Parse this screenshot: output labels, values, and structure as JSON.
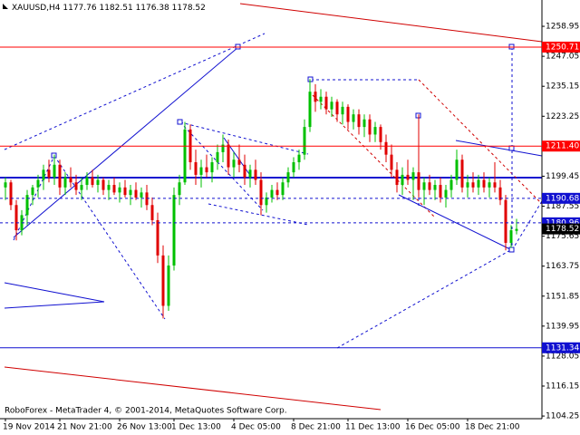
{
  "header": {
    "symbol": "XAUUSD,H4"
  },
  "footer": "RoboForex - MetaTrader 4, © 2001-2014, MetaQuotes Software Corp.",
  "chart_data": {
    "type": "candlestick",
    "up_color": "#00c000",
    "down_color": "#e00000",
    "ylim": [
      1103.2,
      1269.4
    ],
    "yticks": [
      1258.95,
      1247.05,
      1235.15,
      1223.25,
      1199.45,
      1187.55,
      1175.65,
      1163.75,
      1151.85,
      1139.95,
      1128.05,
      1116.15,
      1104.25
    ],
    "categories": [
      "19 Nov 2014",
      null,
      null,
      null,
      null,
      null,
      null,
      null,
      null,
      null,
      "21 Nov 21:00",
      null,
      null,
      null,
      null,
      null,
      null,
      null,
      null,
      null,
      null,
      "26 Nov 13:00",
      null,
      null,
      null,
      null,
      null,
      null,
      null,
      null,
      null,
      "1 Dec 13:00",
      null,
      null,
      null,
      null,
      null,
      null,
      null,
      null,
      null,
      null,
      "4 Dec 05:00",
      null,
      null,
      null,
      null,
      null,
      null,
      null,
      null,
      null,
      null,
      "8 Dec 21:00",
      null,
      null,
      null,
      null,
      null,
      null,
      null,
      null,
      null,
      "11 Dec 13:00",
      null,
      null,
      null,
      null,
      null,
      null,
      null,
      null,
      null,
      null,
      "16 Dec 05:00",
      null,
      null,
      null,
      null,
      null,
      null,
      null,
      null,
      null,
      null,
      "18 Dec 21:00",
      null,
      null,
      null,
      null,
      null,
      null,
      null,
      null,
      null
    ],
    "ohlc": [
      [
        1195,
        1199,
        1190,
        1197
      ],
      [
        1197,
        1198,
        1186,
        1188
      ],
      [
        1188,
        1190,
        1174,
        1178
      ],
      [
        1178,
        1186,
        1176,
        1184
      ],
      [
        1184,
        1194,
        1180,
        1192
      ],
      [
        1192,
        1196,
        1188,
        1195
      ],
      [
        1195,
        1200,
        1191,
        1198
      ],
      [
        1198,
        1204,
        1194,
        1202
      ],
      [
        1202,
        1206,
        1197,
        1199
      ],
      [
        1199,
        1208,
        1196,
        1204
      ],
      [
        1204,
        1206,
        1192,
        1195
      ],
      [
        1195,
        1201,
        1192,
        1199
      ],
      [
        1199,
        1203,
        1195,
        1197
      ],
      [
        1197,
        1200,
        1192,
        1194
      ],
      [
        1194,
        1199,
        1190,
        1196
      ],
      [
        1196,
        1201,
        1194,
        1199
      ],
      [
        1199,
        1202,
        1195,
        1196
      ],
      [
        1196,
        1200,
        1193,
        1198
      ],
      [
        1198,
        1199,
        1192,
        1194
      ],
      [
        1194,
        1198,
        1190,
        1196
      ],
      [
        1196,
        1199,
        1192,
        1193
      ],
      [
        1193,
        1197,
        1189,
        1195
      ],
      [
        1195,
        1198,
        1191,
        1192
      ],
      [
        1192,
        1196,
        1188,
        1194
      ],
      [
        1194,
        1197,
        1190,
        1191
      ],
      [
        1191,
        1195,
        1187,
        1193
      ],
      [
        1193,
        1196,
        1186,
        1188
      ],
      [
        1188,
        1191,
        1180,
        1182
      ],
      [
        1182,
        1185,
        1165,
        1168
      ],
      [
        1168,
        1172,
        1143,
        1148
      ],
      [
        1148,
        1168,
        1146,
        1164
      ],
      [
        1164,
        1195,
        1162,
        1192
      ],
      [
        1192,
        1200,
        1188,
        1197
      ],
      [
        1197,
        1221,
        1196,
        1218
      ],
      [
        1218,
        1220,
        1202,
        1205
      ],
      [
        1205,
        1210,
        1196,
        1200
      ],
      [
        1200,
        1206,
        1195,
        1203
      ],
      [
        1203,
        1208,
        1199,
        1201
      ],
      [
        1201,
        1207,
        1197,
        1205
      ],
      [
        1205,
        1212,
        1202,
        1209
      ],
      [
        1209,
        1216,
        1205,
        1212
      ],
      [
        1212,
        1214,
        1200,
        1203
      ],
      [
        1203,
        1209,
        1199,
        1206
      ],
      [
        1206,
        1212,
        1201,
        1204
      ],
      [
        1204,
        1208,
        1196,
        1199
      ],
      [
        1199,
        1204,
        1195,
        1202
      ],
      [
        1202,
        1206,
        1196,
        1198
      ],
      [
        1198,
        1201,
        1184,
        1188
      ],
      [
        1188,
        1193,
        1185,
        1191
      ],
      [
        1191,
        1196,
        1189,
        1194
      ],
      [
        1194,
        1197,
        1190,
        1192
      ],
      [
        1192,
        1199,
        1190,
        1197
      ],
      [
        1197,
        1203,
        1195,
        1201
      ],
      [
        1201,
        1207,
        1199,
        1205
      ],
      [
        1205,
        1210,
        1202,
        1208
      ],
      [
        1208,
        1222,
        1206,
        1219
      ],
      [
        1219,
        1238,
        1217,
        1233
      ],
      [
        1233,
        1236,
        1225,
        1229
      ],
      [
        1229,
        1234,
        1226,
        1231
      ],
      [
        1231,
        1233,
        1224,
        1226
      ],
      [
        1226,
        1231,
        1223,
        1229
      ],
      [
        1229,
        1230,
        1221,
        1224
      ],
      [
        1224,
        1229,
        1220,
        1227
      ],
      [
        1227,
        1228,
        1218,
        1221
      ],
      [
        1221,
        1226,
        1218,
        1224
      ],
      [
        1224,
        1226,
        1216,
        1219
      ],
      [
        1219,
        1224,
        1215,
        1222
      ],
      [
        1222,
        1224,
        1213,
        1216
      ],
      [
        1216,
        1221,
        1213,
        1219
      ],
      [
        1219,
        1220,
        1210,
        1213
      ],
      [
        1213,
        1216,
        1205,
        1208
      ],
      [
        1208,
        1212,
        1199,
        1202
      ],
      [
        1202,
        1205,
        1193,
        1196
      ],
      [
        1196,
        1203,
        1192,
        1200
      ],
      [
        1200,
        1206,
        1196,
        1198
      ],
      [
        1198,
        1203,
        1190,
        1201
      ],
      [
        1201,
        1224,
        1191,
        1194
      ],
      [
        1194,
        1199,
        1188,
        1197
      ],
      [
        1197,
        1200,
        1192,
        1194
      ],
      [
        1194,
        1198,
        1190,
        1196
      ],
      [
        1196,
        1199,
        1189,
        1191
      ],
      [
        1191,
        1196,
        1187,
        1194
      ],
      [
        1194,
        1200,
        1191,
        1198
      ],
      [
        1198,
        1210,
        1196,
        1206
      ],
      [
        1206,
        1208,
        1193,
        1195
      ],
      [
        1195,
        1200,
        1191,
        1197
      ],
      [
        1197,
        1201,
        1193,
        1195
      ],
      [
        1195,
        1200,
        1192,
        1198
      ],
      [
        1198,
        1201,
        1193,
        1195
      ],
      [
        1195,
        1199,
        1191,
        1197
      ],
      [
        1197,
        1205,
        1193,
        1195
      ],
      [
        1195,
        1198,
        1188,
        1190
      ],
      [
        1190,
        1192,
        1170,
        1173
      ],
      [
        1173,
        1180,
        1171,
        1178
      ],
      [
        1177.76,
        1182.51,
        1176.38,
        1178.52
      ]
    ],
    "levels": [
      {
        "value": 1250.71,
        "label": "1250.71",
        "color": "#ff0000",
        "line": "solid"
      },
      {
        "value": 1211.4,
        "label": "1211.40",
        "color": "#ff0000",
        "line": "solid"
      },
      {
        "value": 1190.68,
        "label": "1190.68",
        "color": "#1010d0",
        "line": "dashed"
      },
      {
        "value": 1180.96,
        "label": "1180.96",
        "color": "#1010d0",
        "line": "dashed"
      },
      {
        "value": 1131.34,
        "label": "1131.34",
        "color": "#1010d0",
        "line": "solid"
      }
    ],
    "current_price_color": "#000000"
  }
}
